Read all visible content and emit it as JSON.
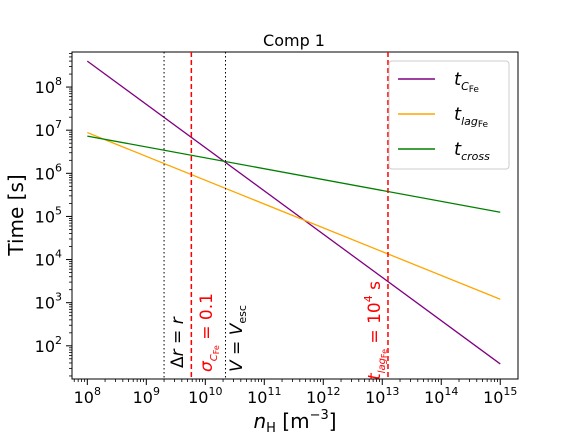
{
  "chart_data": {
    "type": "line",
    "title": "Comp 1",
    "xlabel": "n_H [m^-3]",
    "ylabel": "Time [s]",
    "xscale": "log",
    "yscale": "log",
    "xlim": [
      55000000.0,
      2000000000000000.0
    ],
    "ylim": [
      17,
      650000000.0
    ],
    "grid": false,
    "legend_position": "top-right",
    "xticks": [
      {
        "value": 100000000.0,
        "base": "10",
        "exp": "8"
      },
      {
        "value": 1000000000.0,
        "base": "10",
        "exp": "9"
      },
      {
        "value": 10000000000.0,
        "base": "10",
        "exp": "10"
      },
      {
        "value": 100000000000.0,
        "base": "10",
        "exp": "11"
      },
      {
        "value": 1000000000000.0,
        "base": "10",
        "exp": "12"
      },
      {
        "value": 10000000000000.0,
        "base": "10",
        "exp": "13"
      },
      {
        "value": 100000000000000.0,
        "base": "10",
        "exp": "14"
      },
      {
        "value": 1000000000000000.0,
        "base": "10",
        "exp": "15"
      }
    ],
    "yticks": [
      {
        "value": 100.0,
        "base": "10",
        "exp": "2"
      },
      {
        "value": 1000.0,
        "base": "10",
        "exp": "3"
      },
      {
        "value": 10000.0,
        "base": "10",
        "exp": "4"
      },
      {
        "value": 100000.0,
        "base": "10",
        "exp": "5"
      },
      {
        "value": 1000000.0,
        "base": "10",
        "exp": "6"
      },
      {
        "value": 10000000.0,
        "base": "10",
        "exp": "7"
      },
      {
        "value": 100000000.0,
        "base": "10",
        "exp": "8"
      }
    ],
    "series": [
      {
        "name": "t_C_Fe",
        "color": "#800080",
        "x": [
          100000000.0,
          1000000000000000.0
        ],
        "y": [
          400000000.0,
          38
        ]
      },
      {
        "name": "t_lag_Fe",
        "color": "#FFA500",
        "x": [
          100000000.0,
          1000000000000000.0
        ],
        "y": [
          8800000.0,
          1200
        ]
      },
      {
        "name": "t_cross",
        "color": "#008000",
        "x": [
          100000000.0,
          1000000000000000.0
        ],
        "y": [
          7300000.0,
          125000.0
        ]
      }
    ],
    "vlines": [
      {
        "x": 2000000000.0,
        "color": "#000000",
        "style": "dotted",
        "label": "Δr = r"
      },
      {
        "x": 5800000000.0,
        "color": "#FF0000",
        "style": "dashed",
        "label": "σ_C_Fe = 0.1"
      },
      {
        "x": 22000000000.0,
        "color": "#000000",
        "style": "dotted",
        "label": "V = V_esc"
      },
      {
        "x": 12500000000000.0,
        "color": "#FF0000",
        "style": "dashed",
        "label": "t_lag_Fe = 10^4 s"
      }
    ]
  }
}
